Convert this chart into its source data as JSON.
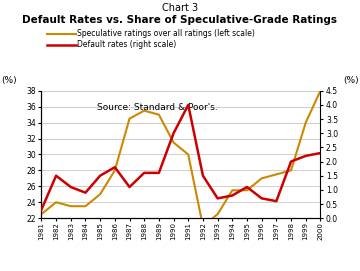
{
  "title_top": "Chart 3",
  "title_main": "Default Rates vs. Share of Speculative-Grade Ratings",
  "years": [
    1981,
    1982,
    1983,
    1984,
    1985,
    1986,
    1987,
    1988,
    1989,
    1990,
    1991,
    1992,
    1993,
    1994,
    1995,
    1996,
    1997,
    1998,
    1999,
    2000
  ],
  "speculative": [
    22.5,
    24.0,
    23.5,
    23.5,
    25.0,
    28.0,
    34.5,
    35.5,
    35.0,
    31.5,
    30.0,
    21.0,
    22.5,
    25.5,
    25.5,
    27.0,
    27.5,
    28.0,
    34.0,
    38.0
  ],
  "default_rates": [
    0.3,
    1.5,
    1.1,
    0.9,
    1.5,
    1.8,
    1.1,
    1.6,
    1.6,
    3.0,
    4.0,
    1.5,
    0.7,
    0.8,
    1.1,
    0.7,
    0.6,
    2.0,
    2.2,
    2.3
  ],
  "spec_color": "#CC8800",
  "default_color": "#CC0000",
  "left_ylim": [
    22,
    38
  ],
  "left_yticks": [
    22,
    24,
    26,
    28,
    30,
    32,
    34,
    36,
    38
  ],
  "right_ylim": [
    0.0,
    4.5
  ],
  "right_yticks": [
    0.0,
    0.5,
    1.0,
    1.5,
    2.0,
    2.5,
    3.0,
    3.5,
    4.0,
    4.5
  ],
  "source_text": "Source: Standard & Poor's.",
  "legend_spec": "Speculative ratings over all ratings (left scale)",
  "legend_def": "Default rates (right scale)",
  "left_ylabel": "(%)",
  "right_ylabel": "(%)"
}
